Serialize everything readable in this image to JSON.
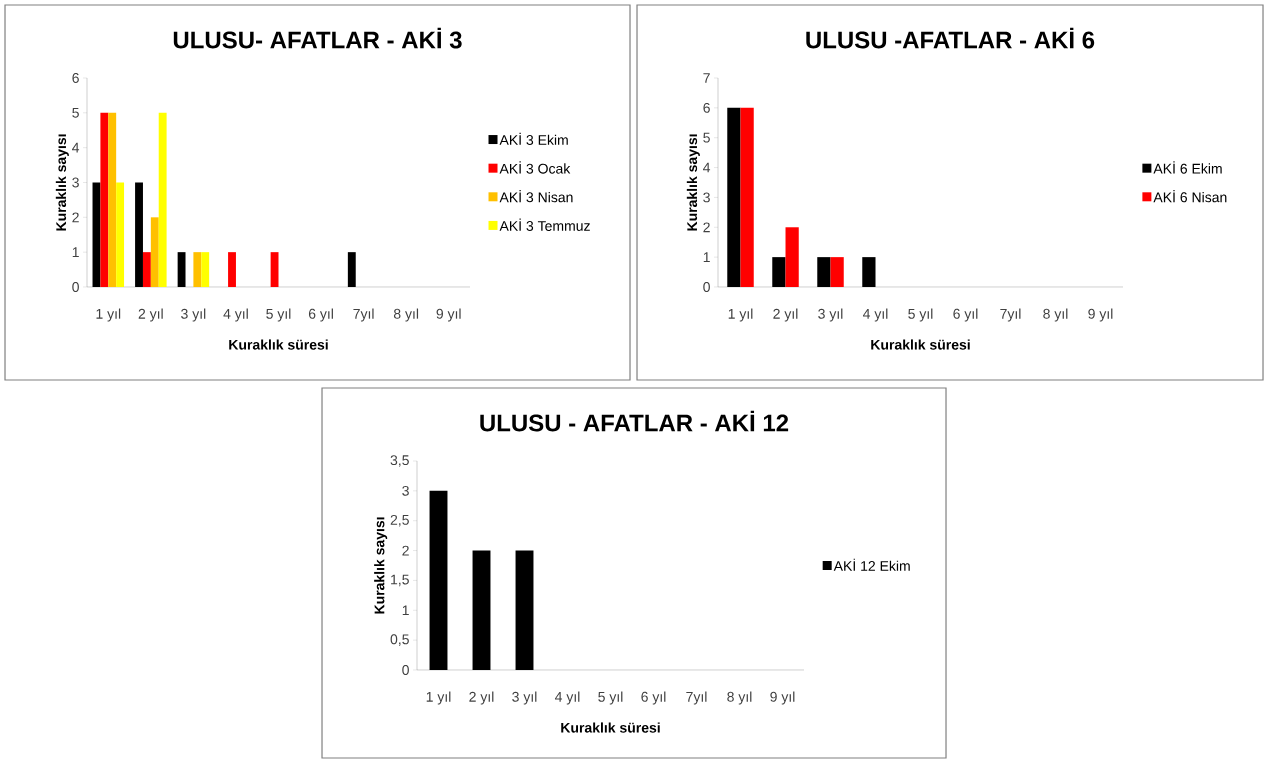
{
  "chart_data": [
    {
      "type": "bar",
      "title": "ULUSU- AFATLAR - AKİ 3",
      "xlabel": "Kuraklık süresi",
      "ylabel": "Kuraklık sayısı",
      "categories": [
        "1 yıl",
        "2 yıl",
        "3 yıl",
        "4 yıl",
        "5 yıl",
        "6 yıl",
        "7yıl",
        "8 yıl",
        "9 yıl"
      ],
      "series": [
        {
          "name": "AKİ 3 Ekim",
          "color": "#000000",
          "values": [
            3,
            3,
            1,
            0,
            0,
            0,
            1,
            0,
            0
          ]
        },
        {
          "name": "AKİ 3 Ocak",
          "color": "#ff0000",
          "values": [
            5,
            1,
            0,
            1,
            1,
            0,
            0,
            0,
            0
          ]
        },
        {
          "name": "AKİ 3 Nisan",
          "color": "#ffc000",
          "values": [
            5,
            2,
            1,
            0,
            0,
            0,
            0,
            0,
            0
          ]
        },
        {
          "name": "AKİ 3 Temmuz",
          "color": "#ffff00",
          "values": [
            3,
            5,
            1,
            0,
            0,
            0,
            0,
            0,
            0
          ]
        }
      ],
      "ylim": [
        0,
        6
      ],
      "yticks": [
        0,
        1,
        2,
        3,
        4,
        5,
        6
      ],
      "legend": "right"
    },
    {
      "type": "bar",
      "title": "ULUSU -AFATLAR - AKİ 6",
      "xlabel": "Kuraklık süresi",
      "ylabel": "Kuraklık sayısı",
      "categories": [
        "1 yıl",
        "2 yıl",
        "3 yıl",
        "4 yıl",
        "5 yıl",
        "6 yıl",
        "7yıl",
        "8 yıl",
        "9 yıl"
      ],
      "series": [
        {
          "name": "AKİ 6 Ekim",
          "color": "#000000",
          "values": [
            6,
            1,
            1,
            1,
            0,
            0,
            0,
            0,
            0
          ]
        },
        {
          "name": "AKİ 6 Nisan",
          "color": "#ff0000",
          "values": [
            6,
            2,
            1,
            0,
            0,
            0,
            0,
            0,
            0
          ]
        }
      ],
      "ylim": [
        0,
        7
      ],
      "yticks": [
        0,
        1,
        2,
        3,
        4,
        5,
        6,
        7
      ],
      "legend": "right"
    },
    {
      "type": "bar",
      "title": "ULUSU - AFATLAR - AKİ 12",
      "xlabel": "Kuraklık süresi",
      "ylabel": "Kuraklık sayısı",
      "categories": [
        "1 yıl",
        "2 yıl",
        "3 yıl",
        "4 yıl",
        "5 yıl",
        "6 yıl",
        "7yıl",
        "8 yıl",
        "9 yıl"
      ],
      "series": [
        {
          "name": "AKİ 12 Ekim",
          "color": "#000000",
          "values": [
            3,
            2,
            2,
            0,
            0,
            0,
            0,
            0,
            0
          ]
        }
      ],
      "ylim": [
        0,
        3.5
      ],
      "yticks": [
        0,
        {
          "value": 0.5,
          "label": "0,5"
        },
        1,
        {
          "value": 1.5,
          "label": "1,5"
        },
        2,
        {
          "value": 2.5,
          "label": "2,5"
        },
        3,
        {
          "value": 3.5,
          "label": "3,5"
        }
      ],
      "legend": "right"
    }
  ]
}
